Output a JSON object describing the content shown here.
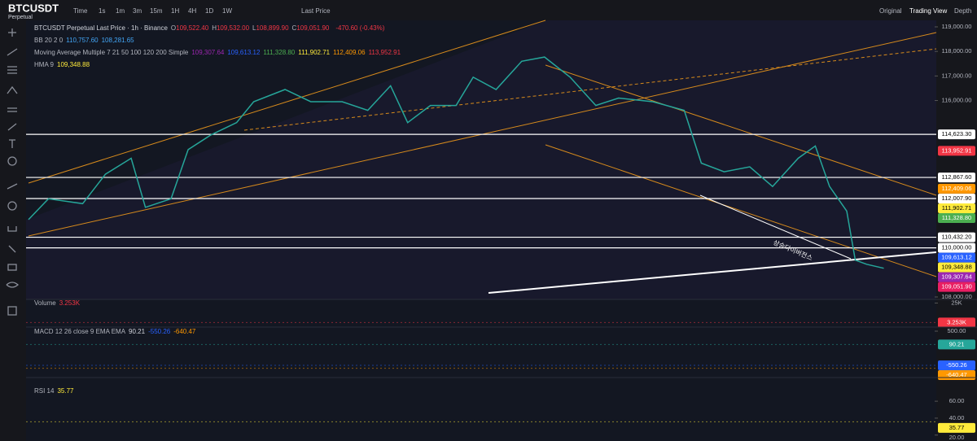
{
  "toolbar": {
    "symbol": "BTCUSDT",
    "contract": "Perpetual",
    "intervals": [
      "Time",
      "1s",
      "1m",
      "3m",
      "15m",
      "1H",
      "4H",
      "1D",
      "1W"
    ],
    "price_type": "Last Price",
    "views": [
      "Original",
      "Trading View",
      "Depth"
    ]
  },
  "legend": {
    "title": "BTCUSDT Perpetual Last Price · 1h · Binance",
    "ohlc": [
      {
        "key": "O",
        "value": "109,522.40"
      },
      {
        "key": "H",
        "value": "109,532.00"
      },
      {
        "key": "L",
        "value": "108,899.90"
      },
      {
        "key": "C",
        "value": "109,051.90"
      }
    ],
    "change": "-470.60 (-0.43%)",
    "bb": {
      "name": "BB 20 2 0",
      "values": [
        "110,757.60",
        "108,281.65"
      ]
    },
    "ma_name": "Moving Average Multiple 7 21 50 100 120 200 Simple",
    "hma_name": "HMA 9"
  },
  "chart_data": {
    "type": "line",
    "color": "#26a69a",
    "x": [
      0,
      7,
      19,
      27,
      36,
      41,
      50,
      56,
      64,
      73,
      79,
      90,
      99,
      110,
      119,
      127,
      133,
      141,
      150,
      156,
      164,
      173,
      181,
      190,
      199,
      207,
      219,
      230,
      236,
      244,
      253,
      261,
      270,
      276,
      281,
      287,
      290,
      294,
      300
    ],
    "values": [
      111150,
      112000,
      111800,
      113000,
      113650,
      111650,
      112000,
      114000,
      114600,
      115100,
      115950,
      116450,
      115950,
      115950,
      115600,
      116600,
      115100,
      115800,
      115800,
      116950,
      116450,
      117600,
      117770,
      116950,
      115800,
      116100,
      115950,
      115600,
      113450,
      113100,
      113300,
      112500,
      113650,
      114150,
      112500,
      111500,
      109500,
      109330,
      109170
    ],
    "xlim": [
      0,
      317
    ],
    "ylim": [
      107900,
      119265
    ],
    "yticks": [
      {
        "value": 119000,
        "label": "119,000.00"
      },
      {
        "value": 118000,
        "label": "118,000.00"
      },
      {
        "value": 117000,
        "label": "117,000.00"
      },
      {
        "value": 116000,
        "label": "116,000.00"
      },
      {
        "value": 108000,
        "label": "108,000.00"
      }
    ],
    "markers": [
      {
        "value": 114623.3,
        "label": "114,623.30",
        "color": "#ffffff",
        "line": true
      },
      {
        "value": 113952.91,
        "label": "113,952.91",
        "color": "#f23645"
      },
      {
        "value": 112867.6,
        "label": "112,867.60",
        "color": "#ffffff",
        "line": true
      },
      {
        "value": 112409.06,
        "label": "112,409.06",
        "color": "#ff9800"
      },
      {
        "value": 112007.9,
        "label": "112,007.90",
        "color": "#ffffff",
        "line": true
      },
      {
        "value": 111902.71,
        "label": "111,902.71",
        "color": "#ffeb3b"
      },
      {
        "value": 111328.8,
        "label": "111,328.80",
        "color": "#4caf50"
      },
      {
        "value": 110432.2,
        "label": "110,432.20",
        "color": "#ffffff",
        "line": true
      },
      {
        "value": 110000,
        "label": "110,000.00",
        "color": "#ffffff",
        "line": true
      },
      {
        "value": 109613.12,
        "label": "109,613.12",
        "color": "#2962ff"
      },
      {
        "value": 109348.88,
        "label": "109,348.88",
        "color": "#ffeb3b"
      },
      {
        "value": 109307.64,
        "label": "109,307.64",
        "color": "#9c27b0"
      },
      {
        "value": 109051.9,
        "label": "109,051.90",
        "color": "#e91e63"
      }
    ],
    "annotation": "상승다이버전스"
  },
  "volume": {
    "name": "Volume",
    "ylim": [
      0,
      29000
    ],
    "yticks": [
      {
        "value": 25000,
        "label": "25K"
      }
    ],
    "current": {
      "value": 3253,
      "label": "3.253K",
      "color": "#f23645"
    }
  },
  "macd": {
    "name": "MACD 12 26 close 9 EMA EMA",
    "ylim": [
      -875,
      625
    ],
    "yticks": [
      {
        "value": 500,
        "label": "500.00"
      }
    ],
    "lines": [
      {
        "value": 90.21,
        "color": "#26a69a"
      },
      {
        "value": -550.26,
        "color": "#2962ff"
      },
      {
        "value": -640.47,
        "color": "#ff9800"
      }
    ]
  },
  "rsi": {
    "name": "RSI 14",
    "ylim": [
      13,
      88
    ],
    "yticks": [
      {
        "value": 60,
        "label": "60.00"
      },
      {
        "value": 40,
        "label": "40.00"
      },
      {
        "value": 20,
        "label": "20.00"
      }
    ],
    "current": {
      "value": 35.77,
      "color": "#ffeb3b"
    }
  }
}
